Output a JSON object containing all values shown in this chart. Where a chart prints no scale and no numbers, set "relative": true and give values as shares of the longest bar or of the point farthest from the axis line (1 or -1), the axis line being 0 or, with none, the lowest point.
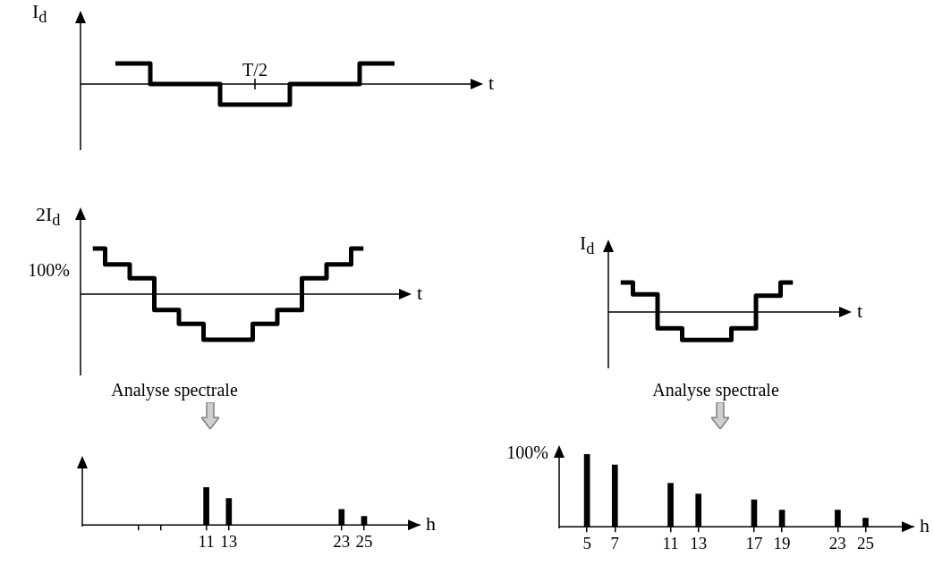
{
  "chart_data": [
    {
      "type": "step",
      "relative": true,
      "color": "#000000",
      "categories": [
        null,
        null,
        null,
        null,
        null
      ],
      "values": [
        1,
        0,
        -1,
        0,
        1
      ],
      "ylabel": "I$_{d}$",
      "xlabel": "t",
      "annotations": [
        "T/2"
      ]
    },
    {
      "type": "step",
      "relative": true,
      "color": "#000000",
      "categories": [
        null,
        null,
        null,
        null,
        null,
        null,
        null,
        null,
        null,
        null,
        null,
        null
      ],
      "values": [
        1,
        0.65,
        0.35,
        -0.35,
        -0.65,
        -1,
        -1,
        -0.65,
        -0.35,
        0.35,
        0.65,
        1
      ],
      "ylabel": "2I$_{d}$",
      "xlabel": "t",
      "annotations": [
        "100%",
        "Analyse spectrale"
      ]
    },
    {
      "type": "step",
      "relative": true,
      "color": "#000000",
      "categories": [
        null,
        null,
        null,
        null,
        null,
        null,
        null,
        null
      ],
      "values": [
        1,
        0.6,
        -0.55,
        -0.95,
        -0.95,
        -0.55,
        0.55,
        1
      ],
      "ylabel": "I$_{d}$",
      "xlabel": "t",
      "annotations": [
        "Analyse spectrale"
      ]
    },
    {
      "type": "bar",
      "relative": true,
      "color": "#000000",
      "x": [
        11,
        13,
        23,
        25
      ],
      "values": [
        1,
        0.7,
        0.41,
        0.23
      ],
      "xlim": [
        0,
        30
      ],
      "xticks": [
        {
          "value": 5,
          "label": null
        },
        {
          "value": 7,
          "label": null
        },
        11,
        13,
        23,
        25
      ],
      "xlabel": "h"
    },
    {
      "type": "bar",
      "relative": true,
      "color": "#000000",
      "x": [
        5,
        7,
        11,
        13,
        17,
        19,
        23,
        25
      ],
      "values": [
        1,
        0.85,
        0.6,
        0.45,
        0.37,
        0.23,
        0.23,
        0.12
      ],
      "xlim": [
        3,
        28.5
      ],
      "xticks": [
        5,
        7,
        11,
        13,
        17,
        19,
        23,
        25
      ],
      "xlabel": "h",
      "annotations": [
        "100%"
      ]
    }
  ]
}
